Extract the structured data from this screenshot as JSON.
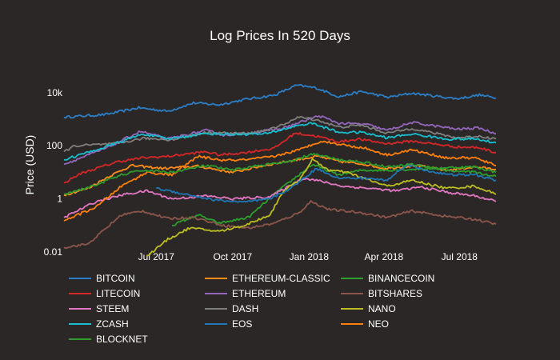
{
  "chart_data": {
    "type": "line",
    "title": "Log Prices In 520 Days",
    "xlabel": "",
    "ylabel": "Price (USD)",
    "y_scale": "log",
    "ylim": [
      0.005,
      60000
    ],
    "xlim": [
      "2017-03-12",
      "2018-08-14"
    ],
    "x_ticks": [
      {
        "date": "2017-07-01",
        "label": "Jul 2017"
      },
      {
        "date": "2017-10-01",
        "label": "Oct 2017"
      },
      {
        "date": "2018-01-01",
        "label": "Jan 2018"
      },
      {
        "date": "2018-04-01",
        "label": "Apr 2018"
      },
      {
        "date": "2018-07-01",
        "label": "Jul 2018"
      }
    ],
    "y_ticks": [
      {
        "value": 10000,
        "label": "10k"
      },
      {
        "value": 100,
        "label": "100"
      },
      {
        "value": 1,
        "label": "1"
      },
      {
        "value": 0.01,
        "label": "0.01"
      }
    ],
    "legend_position": "bottom",
    "series": [
      {
        "name": "BITCOIN",
        "color": "#2c7fc7",
        "points": [
          [
            "2017-03-12",
            1200
          ],
          [
            "2017-05-01",
            1500
          ],
          [
            "2017-06-10",
            2700
          ],
          [
            "2017-07-15",
            2000
          ],
          [
            "2017-08-15",
            4100
          ],
          [
            "2017-09-15",
            3500
          ],
          [
            "2017-10-15",
            5500
          ],
          [
            "2017-11-20",
            8000
          ],
          [
            "2017-12-17",
            19000
          ],
          [
            "2018-01-10",
            15000
          ],
          [
            "2018-02-06",
            7000
          ],
          [
            "2018-03-05",
            11000
          ],
          [
            "2018-04-06",
            6700
          ],
          [
            "2018-05-05",
            9500
          ],
          [
            "2018-06-28",
            5900
          ],
          [
            "2018-07-25",
            8200
          ],
          [
            "2018-08-14",
            6300
          ]
        ]
      },
      {
        "name": "ETHEREUM-CLASSIC",
        "color": "#ff8c1a",
        "points": [
          [
            "2017-03-12",
            1.4
          ],
          [
            "2017-04-10",
            2.5
          ],
          [
            "2017-05-05",
            7
          ],
          [
            "2017-06-01",
            18
          ],
          [
            "2017-07-10",
            14
          ],
          [
            "2017-08-20",
            17
          ],
          [
            "2017-10-01",
            10
          ],
          [
            "2017-11-15",
            20
          ],
          [
            "2018-01-10",
            40
          ],
          [
            "2018-02-10",
            25
          ],
          [
            "2018-03-10",
            20
          ],
          [
            "2018-04-01",
            14
          ],
          [
            "2018-05-10",
            18
          ],
          [
            "2018-06-15",
            12
          ],
          [
            "2018-07-20",
            16
          ],
          [
            "2018-08-14",
            13
          ]
        ]
      },
      {
        "name": "BINANCECOIN",
        "color": "#2ca02c",
        "points": [
          [
            "2017-07-20",
            0.1
          ],
          [
            "2017-08-20",
            0.25
          ],
          [
            "2017-09-15",
            0.12
          ],
          [
            "2017-10-20",
            0.2
          ],
          [
            "2017-11-20",
            1.5
          ],
          [
            "2018-01-05",
            20
          ],
          [
            "2018-02-05",
            8
          ],
          [
            "2018-03-05",
            12
          ],
          [
            "2018-04-05",
            12
          ],
          [
            "2018-05-05",
            13
          ],
          [
            "2018-06-15",
            15
          ],
          [
            "2018-07-20",
            16
          ],
          [
            "2018-08-14",
            10
          ]
        ]
      },
      {
        "name": "LITECOIN",
        "color": "#d62728",
        "points": [
          [
            "2017-03-12",
            4
          ],
          [
            "2017-04-01",
            9
          ],
          [
            "2017-05-15",
            25
          ],
          [
            "2017-06-15",
            35
          ],
          [
            "2017-07-15",
            40
          ],
          [
            "2017-08-30",
            60
          ],
          [
            "2017-09-15",
            45
          ],
          [
            "2017-10-15",
            55
          ],
          [
            "2017-11-20",
            80
          ],
          [
            "2017-12-15",
            300
          ],
          [
            "2018-01-10",
            230
          ],
          [
            "2018-02-06",
            140
          ],
          [
            "2018-03-01",
            180
          ],
          [
            "2018-04-05",
            120
          ],
          [
            "2018-05-05",
            150
          ],
          [
            "2018-06-28",
            90
          ],
          [
            "2018-07-25",
            85
          ],
          [
            "2018-08-14",
            55
          ]
        ]
      },
      {
        "name": "ETHEREUM",
        "color": "#9467bd",
        "points": [
          [
            "2017-03-12",
            20
          ],
          [
            "2017-05-01",
            80
          ],
          [
            "2017-06-12",
            350
          ],
          [
            "2017-07-15",
            180
          ],
          [
            "2017-08-30",
            380
          ],
          [
            "2017-09-20",
            250
          ],
          [
            "2017-10-20",
            300
          ],
          [
            "2017-11-30",
            450
          ],
          [
            "2018-01-13",
            1350
          ],
          [
            "2018-02-06",
            700
          ],
          [
            "2018-03-10",
            650
          ],
          [
            "2018-04-05",
            380
          ],
          [
            "2018-05-05",
            750
          ],
          [
            "2018-06-28",
            420
          ],
          [
            "2018-07-25",
            470
          ],
          [
            "2018-08-14",
            280
          ]
        ]
      },
      {
        "name": "BITSHARES",
        "color": "#8c564b",
        "points": [
          [
            "2017-03-12",
            0.015
          ],
          [
            "2017-04-10",
            0.02
          ],
          [
            "2017-05-20",
            0.25
          ],
          [
            "2017-06-15",
            0.35
          ],
          [
            "2017-07-15",
            0.18
          ],
          [
            "2017-08-15",
            0.2
          ],
          [
            "2017-09-20",
            0.1
          ],
          [
            "2017-10-20",
            0.08
          ],
          [
            "2017-11-20",
            0.12
          ],
          [
            "2017-12-20",
            0.3
          ],
          [
            "2018-01-03",
            0.8
          ],
          [
            "2018-01-25",
            0.4
          ],
          [
            "2018-03-05",
            0.3
          ],
          [
            "2018-04-05",
            0.2
          ],
          [
            "2018-05-05",
            0.35
          ],
          [
            "2018-06-15",
            0.22
          ],
          [
            "2018-07-20",
            0.17
          ],
          [
            "2018-08-14",
            0.11
          ]
        ]
      },
      {
        "name": "STEEM",
        "color": "#e377c2",
        "points": [
          [
            "2017-03-12",
            0.2
          ],
          [
            "2017-04-20",
            0.8
          ],
          [
            "2017-05-25",
            1.5
          ],
          [
            "2017-06-20",
            2
          ],
          [
            "2017-07-20",
            1
          ],
          [
            "2017-08-30",
            1.3
          ],
          [
            "2017-10-01",
            1
          ],
          [
            "2017-11-15",
            1.2
          ],
          [
            "2017-12-25",
            6
          ],
          [
            "2018-01-10",
            5
          ],
          [
            "2018-02-10",
            3
          ],
          [
            "2018-03-15",
            2.5
          ],
          [
            "2018-04-15",
            2
          ],
          [
            "2018-05-15",
            2.8
          ],
          [
            "2018-06-20",
            1.7
          ],
          [
            "2018-07-20",
            1.3
          ],
          [
            "2018-08-14",
            0.8
          ]
        ]
      },
      {
        "name": "DASH",
        "color": "#7f7f7f",
        "points": [
          [
            "2017-03-12",
            60
          ],
          [
            "2017-03-25",
            100
          ],
          [
            "2017-05-15",
            120
          ],
          [
            "2017-06-15",
            190
          ],
          [
            "2017-07-20",
            170
          ],
          [
            "2017-08-30",
            320
          ],
          [
            "2017-09-25",
            300
          ],
          [
            "2017-10-20",
            290
          ],
          [
            "2017-11-20",
            450
          ],
          [
            "2017-12-20",
            1200
          ],
          [
            "2018-01-10",
            950
          ],
          [
            "2018-02-06",
            500
          ],
          [
            "2018-03-05",
            600
          ],
          [
            "2018-04-05",
            300
          ],
          [
            "2018-05-05",
            450
          ],
          [
            "2018-06-28",
            200
          ],
          [
            "2018-07-25",
            230
          ],
          [
            "2018-08-14",
            180
          ]
        ]
      },
      {
        "name": "NANO",
        "color": "#bcbd22",
        "points": [
          [
            "2017-06-20",
            0.007
          ],
          [
            "2017-07-15",
            0.03
          ],
          [
            "2017-08-10",
            0.08
          ],
          [
            "2017-09-15",
            0.06
          ],
          [
            "2017-10-15",
            0.1
          ],
          [
            "2017-11-15",
            0.25
          ],
          [
            "2017-12-01",
            2
          ],
          [
            "2017-12-20",
            5
          ],
          [
            "2018-01-05",
            30
          ],
          [
            "2018-01-25",
            12
          ],
          [
            "2018-02-15",
            10
          ],
          [
            "2018-03-15",
            5
          ],
          [
            "2018-04-05",
            3
          ],
          [
            "2018-05-05",
            5
          ],
          [
            "2018-06-15",
            2.5
          ],
          [
            "2018-07-20",
            3
          ],
          [
            "2018-08-14",
            1.5
          ]
        ]
      },
      {
        "name": "ZCASH",
        "color": "#17becf",
        "points": [
          [
            "2017-03-12",
            30
          ],
          [
            "2017-05-01",
            90
          ],
          [
            "2017-06-15",
            280
          ],
          [
            "2017-07-15",
            180
          ],
          [
            "2017-08-30",
            290
          ],
          [
            "2017-10-01",
            270
          ],
          [
            "2017-11-10",
            280
          ],
          [
            "2017-12-20",
            600
          ],
          [
            "2018-01-05",
            700
          ],
          [
            "2018-02-06",
            320
          ],
          [
            "2018-03-05",
            320
          ],
          [
            "2018-04-05",
            200
          ],
          [
            "2018-05-05",
            280
          ],
          [
            "2018-06-15",
            180
          ],
          [
            "2018-07-20",
            180
          ],
          [
            "2018-08-14",
            130
          ]
        ]
      },
      {
        "name": "EOS",
        "color": "#1f77b4",
        "points": [
          [
            "2017-07-01",
            2.5
          ],
          [
            "2017-08-01",
            1.6
          ],
          [
            "2017-09-10",
            0.9
          ],
          [
            "2017-10-15",
            0.75
          ],
          [
            "2017-11-15",
            1
          ],
          [
            "2017-12-10",
            2.5
          ],
          [
            "2018-01-10",
            14
          ],
          [
            "2018-02-06",
            6
          ],
          [
            "2018-03-10",
            6
          ],
          [
            "2018-04-05",
            5
          ],
          [
            "2018-04-29",
            20
          ],
          [
            "2018-05-20",
            12
          ],
          [
            "2018-06-20",
            8
          ],
          [
            "2018-07-20",
            8
          ],
          [
            "2018-08-14",
            5
          ]
        ]
      },
      {
        "name": "NEO",
        "color": "#ff7f0e",
        "points": [
          [
            "2017-03-12",
            0.15
          ],
          [
            "2017-04-20",
            0.5
          ],
          [
            "2017-05-20",
            3
          ],
          [
            "2017-06-20",
            10
          ],
          [
            "2017-07-20",
            8
          ],
          [
            "2017-08-20",
            40
          ],
          [
            "2017-09-20",
            28
          ],
          [
            "2017-10-20",
            30
          ],
          [
            "2017-11-20",
            40
          ],
          [
            "2017-12-20",
            70
          ],
          [
            "2018-01-15",
            150
          ],
          [
            "2018-02-10",
            110
          ],
          [
            "2018-03-10",
            80
          ],
          [
            "2018-04-05",
            45
          ],
          [
            "2018-05-05",
            70
          ],
          [
            "2018-06-15",
            35
          ],
          [
            "2018-07-20",
            35
          ],
          [
            "2018-08-14",
            18
          ]
        ]
      },
      {
        "name": "BLOCKNET",
        "color": "#2e9c2e",
        "points": [
          [
            "2017-03-12",
            1.5
          ],
          [
            "2017-04-15",
            3
          ],
          [
            "2017-05-20",
            8
          ],
          [
            "2017-06-15",
            12
          ],
          [
            "2017-07-20",
            10
          ],
          [
            "2017-08-30",
            18
          ],
          [
            "2017-10-01",
            12
          ],
          [
            "2017-11-01",
            18
          ],
          [
            "2017-12-10",
            25
          ],
          [
            "2018-01-05",
            50
          ],
          [
            "2018-02-05",
            30
          ],
          [
            "2018-03-05",
            25
          ],
          [
            "2018-04-05",
            16
          ],
          [
            "2018-05-05",
            20
          ],
          [
            "2018-06-15",
            12
          ],
          [
            "2018-07-20",
            10
          ],
          [
            "2018-08-14",
            7
          ]
        ]
      }
    ]
  }
}
